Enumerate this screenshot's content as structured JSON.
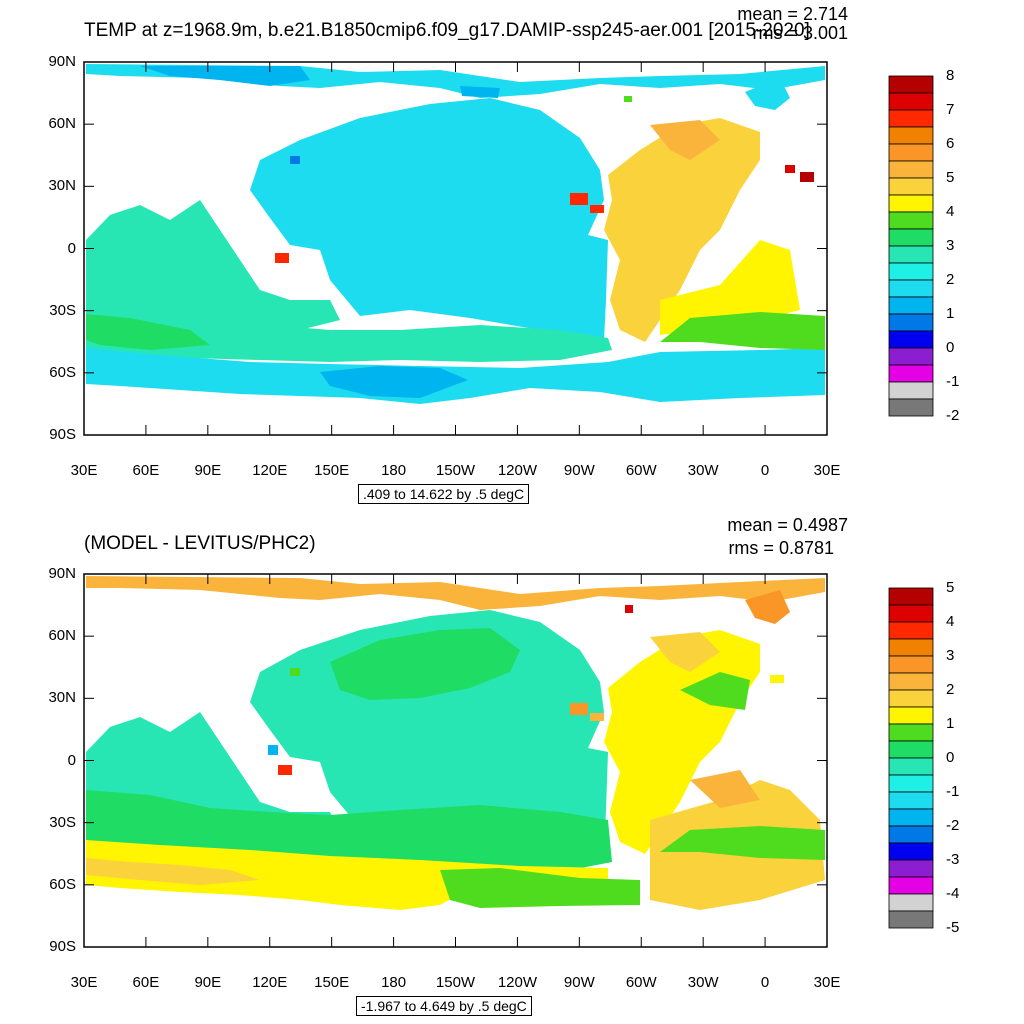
{
  "top_panel": {
    "title": "TEMP at z=1968.9m, b.e21.B1850cmip6.f09_g17.DAMIP-ssp245-aer.001 [2015-2020]",
    "mean": "mean = 2.714",
    "rms": "rms = 3.001",
    "range_label": ".409 to 14.622 by .5 degC",
    "lat_labels": [
      "90N",
      "60N",
      "30N",
      "0",
      "30S",
      "60S",
      "90S"
    ],
    "lon_labels": [
      "30E",
      "60E",
      "90E",
      "120E",
      "150E",
      "180",
      "150W",
      "120W",
      "90W",
      "60W",
      "30W",
      "0",
      "30E"
    ],
    "colorbar_labels": [
      "8",
      "7",
      "6",
      "5",
      "4",
      "3",
      "2",
      "1",
      "0",
      "-1",
      "-2"
    ],
    "colorbar_colors": [
      "#b40000",
      "#dc0000",
      "#ff2800",
      "#f08200",
      "#fa9628",
      "#fab43c",
      "#fad23c",
      "#fff500",
      "#50dc1e",
      "#1edc64",
      "#28e6b4",
      "#1ef0e6",
      "#1edcf0",
      "#00b4f0",
      "#0078e6",
      "#0000f0",
      "#8c1ed2",
      "#e600e6",
      "#d2d2d2",
      "#787878"
    ]
  },
  "bottom_panel": {
    "title": "(MODEL - LEVITUS/PHC2)",
    "mean": "mean = 0.4987",
    "rms": "rms = 0.8781",
    "range_label": "-1.967 to 4.649 by .5 degC",
    "lat_labels": [
      "90N",
      "60N",
      "30N",
      "0",
      "30S",
      "60S",
      "90S"
    ],
    "lon_labels": [
      "30E",
      "60E",
      "90E",
      "120E",
      "150E",
      "180",
      "150W",
      "120W",
      "90W",
      "60W",
      "30W",
      "0",
      "30E"
    ],
    "colorbar_labels": [
      "5",
      "4",
      "3",
      "2",
      "1",
      "0",
      "-1",
      "-2",
      "-3",
      "-4",
      "-5"
    ],
    "colorbar_colors": [
      "#b40000",
      "#dc0000",
      "#ff2800",
      "#f08200",
      "#fa9628",
      "#fab43c",
      "#fad23c",
      "#fff500",
      "#50dc1e",
      "#1edc64",
      "#28e6b4",
      "#1ef0e6",
      "#1edcf0",
      "#00b4f0",
      "#0078e6",
      "#0000f0",
      "#8c1ed2",
      "#e600e6",
      "#d2d2d2",
      "#787878"
    ]
  }
}
